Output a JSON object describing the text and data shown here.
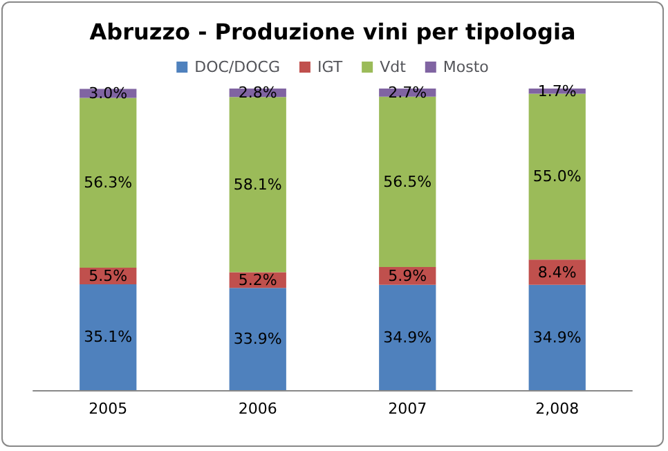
{
  "chart_data": {
    "type": "bar",
    "stacked": true,
    "title": "Abruzzo - Produzione vini per tipologia",
    "categories": [
      "2005",
      "2006",
      "2007",
      "2,008"
    ],
    "series": [
      {
        "name": "DOC/DOCG",
        "color": "#4f81bd",
        "values": [
          35.1,
          33.9,
          34.9,
          34.9
        ],
        "value_labels": [
          "35.1%",
          "33.9%",
          "34.9%",
          "34.9%"
        ]
      },
      {
        "name": "IGT",
        "color": "#c0504d",
        "values": [
          5.5,
          5.2,
          5.9,
          8.4
        ],
        "value_labels": [
          "5.5%",
          "5.2%",
          "5.9%",
          "8.4%"
        ]
      },
      {
        "name": "Vdt",
        "color": "#9bbb59",
        "values": [
          56.3,
          58.1,
          56.5,
          55.0
        ],
        "value_labels": [
          "56.3%",
          "58.1%",
          "56.5%",
          "55.0%"
        ]
      },
      {
        "name": "Mosto",
        "color": "#8064a2",
        "values": [
          3.0,
          2.8,
          2.7,
          1.7
        ],
        "value_labels": [
          "3.0%",
          "2.8%",
          "2.7%",
          "1.7%"
        ]
      }
    ],
    "legend": "top"
  }
}
